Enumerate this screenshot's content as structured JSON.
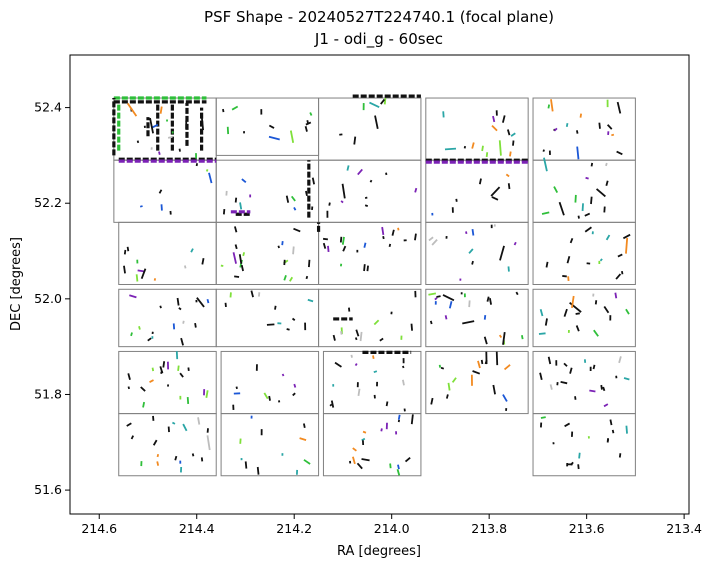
{
  "chart_data": {
    "type": "scatter",
    "title": "PSF Shape - 20240527T224740.1 (focal plane)",
    "subtitle": "J1 - odi_g - 60sec",
    "xlabel": "RA [degrees]",
    "ylabel": "DEC [degrees]",
    "xlim": [
      214.66,
      213.39
    ],
    "ylim": [
      51.55,
      52.51
    ],
    "x_inverted": true,
    "grid": false,
    "legend": "none",
    "x_ticks": [
      214.6,
      214.4,
      214.2,
      214.0,
      213.8,
      213.6,
      213.4
    ],
    "x_tick_labels": [
      "214.6",
      "214.4",
      "214.2",
      "214.0",
      "213.8",
      "213.6",
      "213.4"
    ],
    "y_ticks": [
      51.6,
      51.8,
      52.0,
      52.2,
      52.4
    ],
    "y_tick_labels": [
      "51.6",
      "51.8",
      "52.0",
      "52.2",
      "52.4"
    ],
    "colors": {
      "frame": "#808080",
      "black": "#111111",
      "purple": "#7b22b5",
      "green": "#2fbf3a",
      "blue": "#1b57d6",
      "teal": "#2aa6a6",
      "orange": "#f28a20",
      "lime": "#7fe03a",
      "gray": "#bdbdbd"
    },
    "cells": [
      {
        "ra": [
          214.57,
          214.36
        ],
        "dec": [
          52.29,
          52.42
        ]
      },
      {
        "ra": [
          214.36,
          214.15
        ],
        "dec": [
          52.3,
          52.42
        ]
      },
      {
        "ra": [
          214.15,
          213.94
        ],
        "dec": [
          52.29,
          52.42
        ]
      },
      {
        "ra": [
          213.93,
          213.72
        ],
        "dec": [
          52.29,
          52.42
        ]
      },
      {
        "ra": [
          213.71,
          213.5
        ],
        "dec": [
          52.29,
          52.42
        ]
      },
      {
        "ra": [
          214.57,
          214.36
        ],
        "dec": [
          52.16,
          52.29
        ]
      },
      {
        "ra": [
          214.36,
          214.15
        ],
        "dec": [
          52.16,
          52.29
        ]
      },
      {
        "ra": [
          214.15,
          213.94
        ],
        "dec": [
          52.16,
          52.29
        ]
      },
      {
        "ra": [
          213.93,
          213.72
        ],
        "dec": [
          52.16,
          52.29
        ]
      },
      {
        "ra": [
          213.71,
          213.5
        ],
        "dec": [
          52.16,
          52.29
        ]
      },
      {
        "ra": [
          214.56,
          214.36
        ],
        "dec": [
          52.03,
          52.16
        ]
      },
      {
        "ra": [
          214.36,
          214.15
        ],
        "dec": [
          52.03,
          52.16
        ]
      },
      {
        "ra": [
          214.15,
          213.94
        ],
        "dec": [
          52.03,
          52.16
        ]
      },
      {
        "ra": [
          213.93,
          213.72
        ],
        "dec": [
          52.03,
          52.16
        ]
      },
      {
        "ra": [
          213.71,
          213.5
        ],
        "dec": [
          52.03,
          52.16
        ]
      },
      {
        "ra": [
          214.56,
          214.36
        ],
        "dec": [
          51.9,
          52.02
        ]
      },
      {
        "ra": [
          214.36,
          214.15
        ],
        "dec": [
          51.9,
          52.02
        ]
      },
      {
        "ra": [
          214.15,
          213.94
        ],
        "dec": [
          51.9,
          52.02
        ]
      },
      {
        "ra": [
          213.93,
          213.72
        ],
        "dec": [
          51.9,
          52.02
        ]
      },
      {
        "ra": [
          213.71,
          213.5
        ],
        "dec": [
          51.9,
          52.02
        ]
      },
      {
        "ra": [
          214.56,
          214.36
        ],
        "dec": [
          51.76,
          51.89
        ]
      },
      {
        "ra": [
          214.35,
          214.15
        ],
        "dec": [
          51.76,
          51.89
        ]
      },
      {
        "ra": [
          214.14,
          213.94
        ],
        "dec": [
          51.76,
          51.89
        ]
      },
      {
        "ra": [
          213.93,
          213.72
        ],
        "dec": [
          51.76,
          51.89
        ]
      },
      {
        "ra": [
          213.71,
          213.5
        ],
        "dec": [
          51.76,
          51.89
        ]
      },
      {
        "ra": [
          214.56,
          214.36
        ],
        "dec": [
          51.63,
          51.76
        ]
      },
      {
        "ra": [
          214.35,
          214.15
        ],
        "dec": [
          51.63,
          51.76
        ]
      },
      {
        "ra": [
          214.14,
          213.94
        ],
        "dec": [
          51.63,
          51.76
        ]
      },
      {
        "ra": [
          213.71,
          213.5
        ],
        "dec": [
          51.63,
          51.76
        ]
      }
    ],
    "edge_lines": [
      {
        "ra": [
          214.57,
          214.38
        ],
        "dec": [
          52.42,
          52.42
        ],
        "color": "green"
      },
      {
        "ra": [
          214.57,
          214.38
        ],
        "dec": [
          52.412,
          52.412
        ],
        "color": "black"
      },
      {
        "ra": [
          214.56,
          214.36
        ],
        "dec": [
          52.292,
          52.292
        ],
        "color": "black"
      },
      {
        "ra": [
          214.56,
          214.36
        ],
        "dec": [
          52.288,
          52.288
        ],
        "color": "purple"
      },
      {
        "ra": [
          214.08,
          213.94
        ],
        "dec": [
          52.424,
          52.424
        ],
        "color": "black"
      },
      {
        "ra": [
          213.93,
          213.72
        ],
        "dec": [
          52.29,
          52.29
        ],
        "color": "black"
      },
      {
        "ra": [
          213.93,
          213.72
        ],
        "dec": [
          52.286,
          52.286
        ],
        "color": "purple"
      },
      {
        "ra": [
          214.06,
          213.96
        ],
        "dec": [
          51.888,
          51.888
        ],
        "color": "black"
      },
      {
        "ra": [
          214.12,
          214.08
        ],
        "dec": [
          51.958,
          51.958
        ],
        "color": "black"
      },
      {
        "ra": [
          214.57,
          214.57
        ],
        "dec": [
          52.3,
          52.42
        ],
        "color": "black"
      },
      {
        "ra": [
          214.56,
          214.56
        ],
        "dec": [
          52.31,
          52.41
        ],
        "color": "green"
      },
      {
        "ra": [
          214.48,
          214.48
        ],
        "dec": [
          52.31,
          52.41
        ],
        "color": "black"
      },
      {
        "ra": [
          214.45,
          214.45
        ],
        "dec": [
          52.31,
          52.41
        ],
        "color": "black"
      },
      {
        "ra": [
          214.42,
          214.42
        ],
        "dec": [
          52.32,
          52.41
        ],
        "color": "black"
      },
      {
        "ra": [
          214.39,
          214.39
        ],
        "dec": [
          52.31,
          52.4
        ],
        "color": "black"
      },
      {
        "ra": [
          214.17,
          214.17
        ],
        "dec": [
          52.17,
          52.29
        ],
        "color": "black"
      },
      {
        "ra": [
          214.32,
          214.29
        ],
        "dec": [
          52.177,
          52.177
        ],
        "color": "black"
      },
      {
        "ra": [
          214.33,
          214.29
        ],
        "dec": [
          52.182,
          52.182
        ],
        "color": "purple"
      },
      {
        "ra": [
          214.15,
          214.15
        ],
        "dec": [
          52.14,
          52.16
        ],
        "color": "black"
      },
      {
        "ra": [
          214.5,
          214.5
        ],
        "dec": [
          52.34,
          52.38
        ],
        "color": "black"
      }
    ],
    "scatter_seed": 20240527,
    "scatter_count": 420
  }
}
